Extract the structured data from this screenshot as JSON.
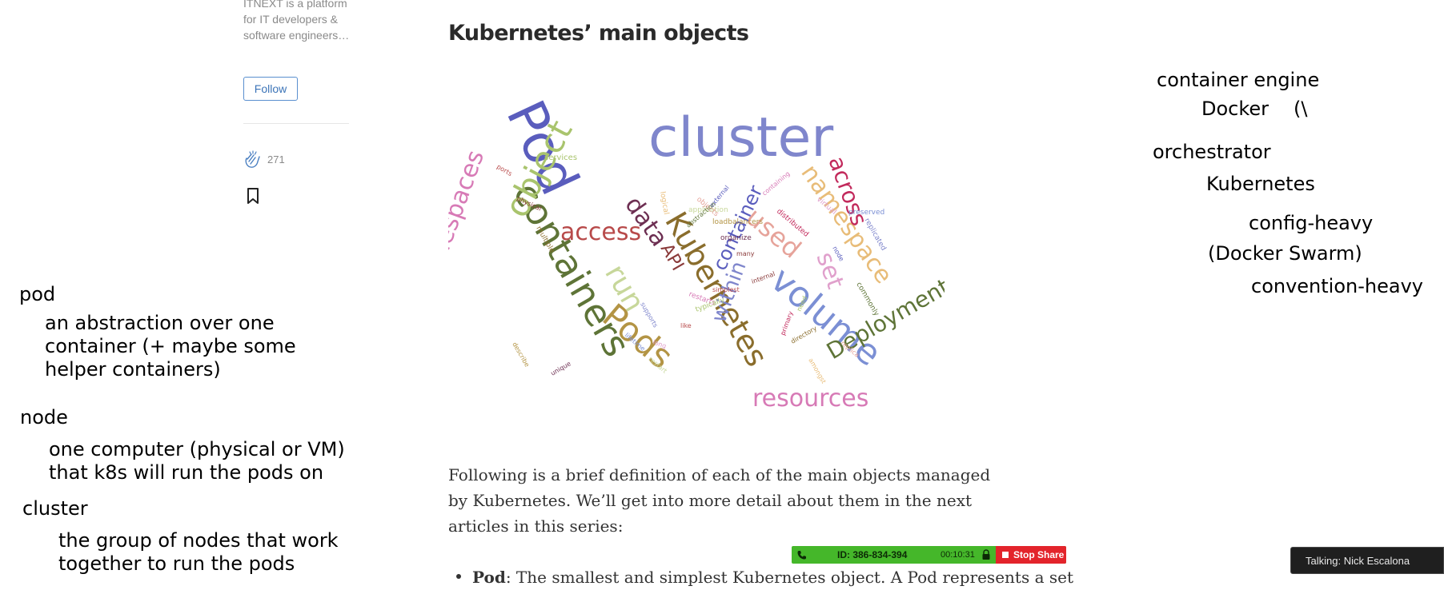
{
  "sidebar": {
    "publication_description": "ITNEXT is a platform for IT developers & software engineers…",
    "follow_label": "Follow",
    "clap_count": "271"
  },
  "article": {
    "heading": "Kubernetes’ main objects",
    "paragraph": "Following is a brief definition of each of the main objects managed by Kubernetes. We’ll get into more detail about them in the next articles in this series:",
    "bullet_term": "Pod",
    "bullet_rest": ": The smallest and simplest Kubernetes object. A Pod represents a set"
  },
  "wordcloud_words": [
    "cluster",
    "Pod",
    "containers",
    "namespaces",
    "object",
    "access",
    "API",
    "Kubernetes",
    "Pods",
    "run",
    "data",
    "used",
    "namespace",
    "across",
    "set",
    "volume",
    "within",
    "container",
    "Deployment",
    "resources",
    "services",
    "ports",
    "physical",
    "multiple",
    "loadbalancers",
    "application",
    "organize",
    "objects",
    "logical",
    "distributed",
    "virtual",
    "preserved",
    "replicated",
    "node",
    "commonly",
    "restarts",
    "typically",
    "simplest",
    "internal",
    "directory",
    "describe",
    "restart",
    "unique",
    "replica",
    "amongst",
    "primary",
    "long",
    "lifetime",
    "supports",
    "external",
    "abstraction",
    "containing",
    "need",
    "like",
    "many"
  ],
  "wordcloud_colors": [
    "#7f86cc",
    "#5a5dbd",
    "#5e7437",
    "#d77ab6",
    "#a9c46d",
    "#b84a4a",
    "#8a3a3a",
    "#8a6d2c",
    "#b39444",
    "#c7d79a",
    "#6d2f52",
    "#e6a39a",
    "#e8bc78",
    "#c22a5c",
    "#e0a0cc",
    "#7b8fd4"
  ],
  "notes": {
    "pod_title": "pod",
    "pod_l1": "an abstraction over one",
    "pod_l2": "container (+ maybe some",
    "pod_l3": "helper containers)",
    "node_title": "node",
    "node_l1": "one computer (physical or VM)",
    "node_l2": "that k8s will run the pods on",
    "cluster_title": "cluster",
    "cluster_l1": "the group of nodes that work",
    "cluster_l2": "together to run the pods",
    "container_engine": "container engine",
    "docker": "Docker",
    "docker_paren": "(\\",
    "orchestrator": "orchestrator",
    "kubernetes": "Kubernetes",
    "config_heavy": "config-heavy",
    "docker_swarm": "(Docker Swarm)",
    "convention_heavy": "convention-heavy"
  },
  "share_bar": {
    "session_id": "ID: 386-834-394",
    "timer": "00:10:31",
    "stop_label": "Stop Share"
  },
  "talking": "Talking: Nick Escalona",
  "colors": {
    "share_bar": "#45b72a",
    "stop_share": "#e3242b",
    "follow_accent": "#3c74b8"
  }
}
